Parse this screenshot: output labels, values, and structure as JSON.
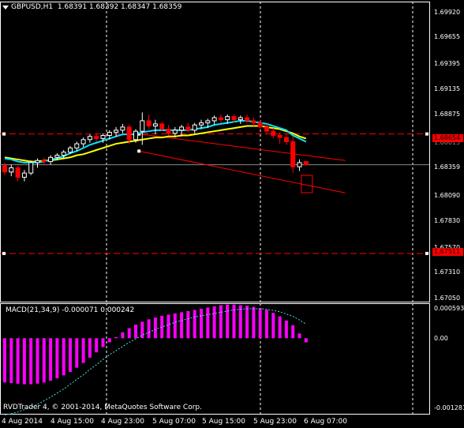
{
  "symbol_title": "GBPUSD,H1  1.68391 1.68392 1.68347 1.68359",
  "macd_title": "MACD(21,34,9) -0.000071 0.000242",
  "copyright": "RVDTrader 4, © 2001-2014, MetaQuotes Software Corp.",
  "colors": {
    "background": "#000000",
    "bull_candle": "#FFFFFF",
    "bear_candle": "#FF0000",
    "fast_ma": "#00E5FF",
    "slow_ma": "#FFFF00",
    "histogram": "#FF00FF",
    "signal": "#40E0E0",
    "level": "#FF0000",
    "grid": "#FFFFFF"
  },
  "price_axis": {
    "ticks": [
      "1.69920",
      "1.69655",
      "1.69395",
      "1.69135",
      "1.68875",
      "1.68615",
      "1.68359",
      "1.68090",
      "1.67830",
      "1.67570",
      "1.67310",
      "1.67050"
    ],
    "current_price": "1.68359",
    "highlighted_levels": [
      "1.68654",
      "1.67511"
    ]
  },
  "macd_axis": {
    "ticks": [
      "0.000593",
      "0.00",
      "-0.001281"
    ]
  },
  "time_axis": {
    "labels": [
      "4 Aug 2014",
      "4 Aug 15:00",
      "4 Aug 23:00",
      "5 Aug 07:00",
      "5 Aug 15:00",
      "5 Aug 23:00",
      "6 Aug 07:00"
    ]
  },
  "chart_data": {
    "type": "candlestick",
    "symbol": "GBPUSD",
    "timeframe": "H1",
    "ylim": [
      1.6705,
      1.6992
    ],
    "candles": [
      {
        "o": 1.6835,
        "h": 1.6838,
        "l": 1.6826,
        "c": 1.6829
      },
      {
        "o": 1.6829,
        "h": 1.6836,
        "l": 1.6825,
        "c": 1.6833
      },
      {
        "o": 1.6833,
        "h": 1.6835,
        "l": 1.682,
        "c": 1.6824
      },
      {
        "o": 1.6824,
        "h": 1.6831,
        "l": 1.682,
        "c": 1.6828
      },
      {
        "o": 1.6828,
        "h": 1.684,
        "l": 1.6826,
        "c": 1.6838
      },
      {
        "o": 1.6838,
        "h": 1.6842,
        "l": 1.6833,
        "c": 1.684
      },
      {
        "o": 1.684,
        "h": 1.6843,
        "l": 1.6835,
        "c": 1.6839
      },
      {
        "o": 1.6839,
        "h": 1.6845,
        "l": 1.6836,
        "c": 1.6843
      },
      {
        "o": 1.6843,
        "h": 1.6847,
        "l": 1.684,
        "c": 1.6845
      },
      {
        "o": 1.6845,
        "h": 1.685,
        "l": 1.6842,
        "c": 1.6848
      },
      {
        "o": 1.6848,
        "h": 1.6854,
        "l": 1.6846,
        "c": 1.6852
      },
      {
        "o": 1.6852,
        "h": 1.6858,
        "l": 1.6849,
        "c": 1.6856
      },
      {
        "o": 1.6856,
        "h": 1.6862,
        "l": 1.6853,
        "c": 1.686
      },
      {
        "o": 1.686,
        "h": 1.6865,
        "l": 1.6857,
        "c": 1.6863
      },
      {
        "o": 1.6863,
        "h": 1.6866,
        "l": 1.6858,
        "c": 1.6861
      },
      {
        "o": 1.6861,
        "h": 1.6866,
        "l": 1.6857,
        "c": 1.6864
      },
      {
        "o": 1.6864,
        "h": 1.6869,
        "l": 1.686,
        "c": 1.6867
      },
      {
        "o": 1.6867,
        "h": 1.6872,
        "l": 1.6863,
        "c": 1.6869
      },
      {
        "o": 1.6869,
        "h": 1.6875,
        "l": 1.6866,
        "c": 1.6872
      },
      {
        "o": 1.6872,
        "h": 1.6874,
        "l": 1.6856,
        "c": 1.686
      },
      {
        "o": 1.686,
        "h": 1.687,
        "l": 1.6857,
        "c": 1.6868
      },
      {
        "o": 1.6868,
        "h": 1.6886,
        "l": 1.6855,
        "c": 1.6878
      },
      {
        "o": 1.6878,
        "h": 1.6884,
        "l": 1.687,
        "c": 1.6873
      },
      {
        "o": 1.6873,
        "h": 1.6879,
        "l": 1.6865,
        "c": 1.6875
      },
      {
        "o": 1.6875,
        "h": 1.6877,
        "l": 1.6868,
        "c": 1.687
      },
      {
        "o": 1.687,
        "h": 1.6874,
        "l": 1.6864,
        "c": 1.6866
      },
      {
        "o": 1.6866,
        "h": 1.6872,
        "l": 1.6862,
        "c": 1.6869
      },
      {
        "o": 1.6869,
        "h": 1.6874,
        "l": 1.6863,
        "c": 1.6872
      },
      {
        "o": 1.6872,
        "h": 1.6876,
        "l": 1.6867,
        "c": 1.6869
      },
      {
        "o": 1.6869,
        "h": 1.6876,
        "l": 1.6866,
        "c": 1.6874
      },
      {
        "o": 1.6874,
        "h": 1.6879,
        "l": 1.687,
        "c": 1.6876
      },
      {
        "o": 1.6876,
        "h": 1.688,
        "l": 1.6871,
        "c": 1.6878
      },
      {
        "o": 1.6878,
        "h": 1.6883,
        "l": 1.6874,
        "c": 1.6881
      },
      {
        "o": 1.6881,
        "h": 1.6884,
        "l": 1.6876,
        "c": 1.6879
      },
      {
        "o": 1.6879,
        "h": 1.6884,
        "l": 1.6875,
        "c": 1.6882
      },
      {
        "o": 1.6882,
        "h": 1.6884,
        "l": 1.6876,
        "c": 1.6879
      },
      {
        "o": 1.6879,
        "h": 1.6883,
        "l": 1.6875,
        "c": 1.6881
      },
      {
        "o": 1.6881,
        "h": 1.6884,
        "l": 1.6876,
        "c": 1.6878
      },
      {
        "o": 1.6878,
        "h": 1.6881,
        "l": 1.6873,
        "c": 1.6876
      },
      {
        "o": 1.6876,
        "h": 1.6879,
        "l": 1.687,
        "c": 1.6872
      },
      {
        "o": 1.6872,
        "h": 1.6875,
        "l": 1.6865,
        "c": 1.6868
      },
      {
        "o": 1.6868,
        "h": 1.6871,
        "l": 1.6861,
        "c": 1.6864
      },
      {
        "o": 1.6864,
        "h": 1.6867,
        "l": 1.6856,
        "c": 1.6862
      },
      {
        "o": 1.6862,
        "h": 1.6865,
        "l": 1.6855,
        "c": 1.6858
      },
      {
        "o": 1.6858,
        "h": 1.6863,
        "l": 1.6828,
        "c": 1.6834
      },
      {
        "o": 1.6834,
        "h": 1.6841,
        "l": 1.683,
        "c": 1.6838
      },
      {
        "o": 1.6839,
        "h": 1.6839,
        "l": 1.6835,
        "c": 1.6836
      }
    ],
    "fast_ma": [
      1.6842,
      1.6841,
      1.6839,
      1.6838,
      1.6838,
      1.6838,
      1.6839,
      1.6841,
      1.6842,
      1.6844,
      1.6847,
      1.6849,
      1.6852,
      1.6855,
      1.6857,
      1.6859,
      1.6861,
      1.6863,
      1.6865,
      1.6865,
      1.6865,
      1.6867,
      1.6868,
      1.6869,
      1.6869,
      1.6869,
      1.6869,
      1.6869,
      1.6869,
      1.687,
      1.6871,
      1.6872,
      1.6874,
      1.6875,
      1.6876,
      1.6877,
      1.6878,
      1.6878,
      1.6877,
      1.6876,
      1.6875,
      1.6873,
      1.6871,
      1.6869,
      1.6864,
      1.6861,
      1.6858
    ],
    "slow_ma": [
      1.6843,
      1.6842,
      1.6841,
      1.684,
      1.6839,
      1.6839,
      1.684,
      1.684,
      1.6841,
      1.6842,
      1.6843,
      1.6845,
      1.6846,
      1.6848,
      1.685,
      1.6852,
      1.6854,
      1.6856,
      1.6857,
      1.6858,
      1.6859,
      1.686,
      1.6861,
      1.6862,
      1.6862,
      1.6863,
      1.6863,
      1.6864,
      1.6864,
      1.6865,
      1.6866,
      1.6867,
      1.6868,
      1.6869,
      1.687,
      1.6871,
      1.6872,
      1.6873,
      1.6873,
      1.6873,
      1.6872,
      1.6871,
      1.687,
      1.6868,
      1.6866,
      1.6863,
      1.6861
    ],
    "horizontal_levels": [
      1.68654,
      1.67511
    ],
    "current_price": 1.68359,
    "trendlines": [
      {
        "from": {
          "bar": 20.5,
          "price": 1.68654
        },
        "to": {
          "bar": 52,
          "price": 1.684
        }
      },
      {
        "from": {
          "bar": 20.5,
          "price": 1.6849
        },
        "to": {
          "bar": 52,
          "price": 1.6809
        }
      }
    ],
    "macd": {
      "ylim": [
        -0.001281,
        0.000593
      ],
      "histogram": [
        -0.00075,
        -0.00076,
        -0.00077,
        -0.00078,
        -0.00078,
        -0.00077,
        -0.00075,
        -0.00072,
        -0.00068,
        -0.00063,
        -0.00057,
        -0.0005,
        -0.00042,
        -0.00033,
        -0.00024,
        -0.00015,
        -7e-05,
        2e-05,
        0.0001,
        0.00017,
        0.00023,
        0.00028,
        0.00032,
        0.00035,
        0.00038,
        0.0004,
        0.00042,
        0.00044,
        0.00046,
        0.00048,
        0.0005,
        0.00052,
        0.00054,
        0.00056,
        0.00057,
        0.00057,
        0.00056,
        0.00055,
        0.00053,
        0.00051,
        0.00048,
        0.00043,
        0.00037,
        0.0003,
        0.00022,
        8e-05,
        -7e-05
      ],
      "signal": [
        -0.0013,
        -0.00128,
        -0.00125,
        -0.00121,
        -0.00117,
        -0.00112,
        -0.00106,
        -0.001,
        -0.00093,
        -0.00086,
        -0.00078,
        -0.0007,
        -0.00062,
        -0.00053,
        -0.00045,
        -0.00036,
        -0.00028,
        -0.00021,
        -0.00014,
        -7e-05,
        -1e-05,
        5e-05,
        0.0001,
        0.00015,
        0.00019,
        0.00023,
        0.00027,
        0.0003,
        0.00033,
        0.00036,
        0.00038,
        0.0004,
        0.00042,
        0.00044,
        0.00046,
        0.00048,
        0.00049,
        0.0005,
        0.0005,
        0.0005,
        0.00049,
        0.00047,
        0.00045,
        0.00041,
        0.00037,
        0.00031,
        0.00024
      ]
    }
  }
}
